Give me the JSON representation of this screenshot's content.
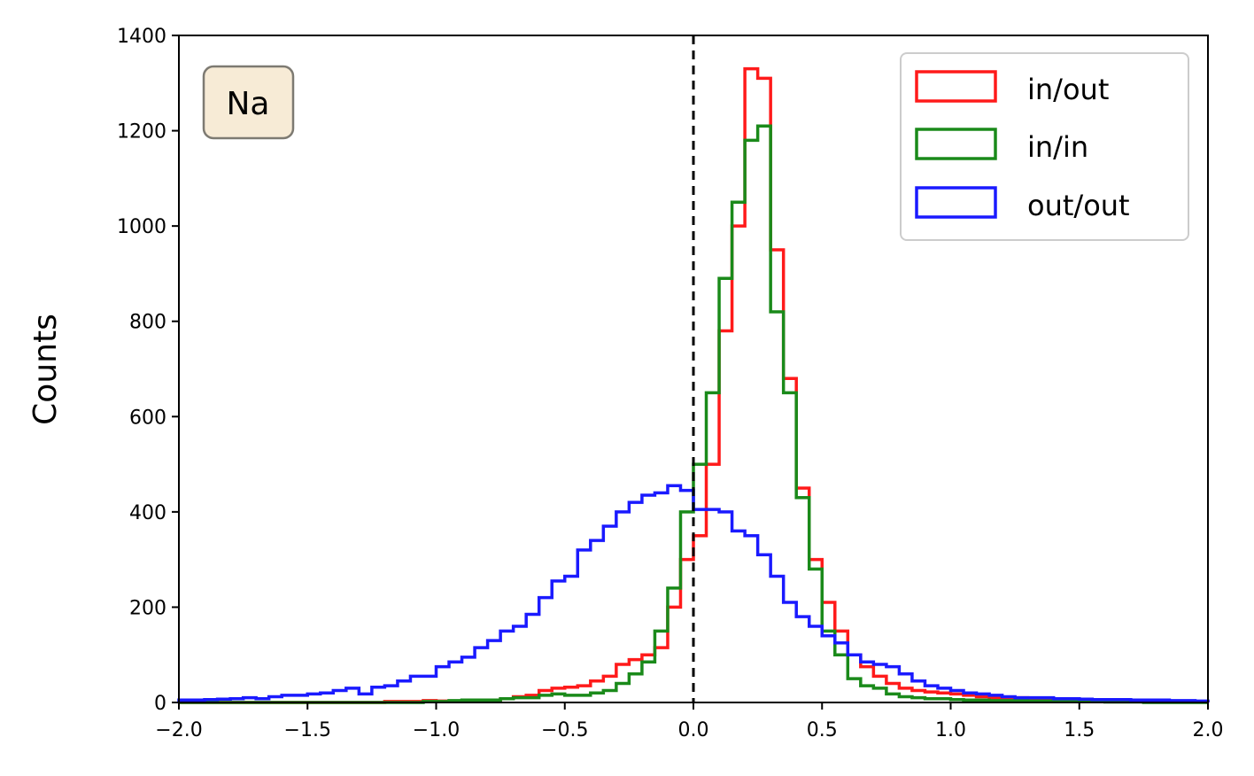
{
  "chart_data": {
    "type": "histogram",
    "title": "",
    "xlabel": "",
    "ylabel": "Counts",
    "annotation": "Na",
    "xlim": [
      -2.0,
      2.0
    ],
    "ylim": [
      0,
      1400
    ],
    "xticks": [
      -2.0,
      -1.5,
      -1.0,
      -0.5,
      0.0,
      0.5,
      1.0,
      1.5,
      2.0
    ],
    "xtick_labels": [
      "−2.0",
      "−1.5",
      "−1.0",
      "−0.5",
      "0.0",
      "0.5",
      "1.0",
      "1.5",
      "2.0"
    ],
    "yticks": [
      0,
      200,
      400,
      600,
      800,
      1000,
      1200,
      1400
    ],
    "ytick_labels": [
      "0",
      "200",
      "400",
      "600",
      "800",
      "1000",
      "1200",
      "1400"
    ],
    "reference_line": {
      "x": 0.0,
      "style": "dashed",
      "color": "#000000"
    },
    "bin_edges_start": -2.0,
    "bin_width": 0.05,
    "legend_position": "top-right",
    "grid": false,
    "series": [
      {
        "name": "in/out",
        "color": "#ff1a1a",
        "values": [
          0,
          0,
          0,
          0,
          0,
          0,
          0,
          0,
          0,
          0,
          0,
          0,
          0,
          0,
          0,
          0,
          2,
          2,
          2,
          4,
          3,
          2,
          3,
          3,
          5,
          8,
          12,
          15,
          25,
          30,
          32,
          35,
          45,
          55,
          80,
          90,
          100,
          115,
          200,
          300,
          350,
          500,
          780,
          1000,
          1330,
          1310,
          950,
          680,
          450,
          300,
          210,
          150,
          100,
          75,
          55,
          40,
          30,
          25,
          22,
          20,
          18,
          15,
          12,
          10,
          10,
          10,
          8,
          8,
          5,
          5,
          5,
          4,
          4,
          4,
          3,
          3,
          2,
          2,
          1,
          1
        ]
      },
      {
        "name": "in/in",
        "color": "#1a8a1a",
        "values": [
          0,
          0,
          0,
          0,
          0,
          0,
          0,
          0,
          0,
          0,
          0,
          0,
          0,
          0,
          0,
          0,
          0,
          0,
          0,
          2,
          2,
          4,
          5,
          5,
          5,
          8,
          10,
          10,
          15,
          18,
          15,
          15,
          20,
          25,
          40,
          60,
          85,
          150,
          240,
          400,
          500,
          650,
          890,
          1050,
          1180,
          1210,
          820,
          650,
          430,
          280,
          150,
          100,
          50,
          35,
          30,
          18,
          12,
          10,
          8,
          8,
          6,
          5,
          5,
          4,
          4,
          4,
          3,
          3,
          2,
          2,
          2,
          2,
          1,
          1,
          1,
          0,
          0,
          0,
          0,
          0
        ]
      },
      {
        "name": "out/out",
        "color": "#1a1aff",
        "values": [
          5,
          5,
          6,
          7,
          8,
          10,
          8,
          12,
          15,
          15,
          18,
          20,
          25,
          30,
          18,
          32,
          35,
          45,
          55,
          55,
          75,
          85,
          95,
          115,
          130,
          150,
          160,
          185,
          220,
          255,
          265,
          320,
          340,
          370,
          400,
          420,
          435,
          440,
          455,
          445,
          405,
          405,
          400,
          360,
          350,
          310,
          265,
          210,
          180,
          160,
          140,
          125,
          100,
          85,
          80,
          75,
          60,
          45,
          35,
          30,
          25,
          20,
          18,
          15,
          12,
          10,
          10,
          10,
          8,
          8,
          7,
          6,
          6,
          6,
          5,
          5,
          5,
          4,
          4,
          3
        ]
      }
    ]
  }
}
